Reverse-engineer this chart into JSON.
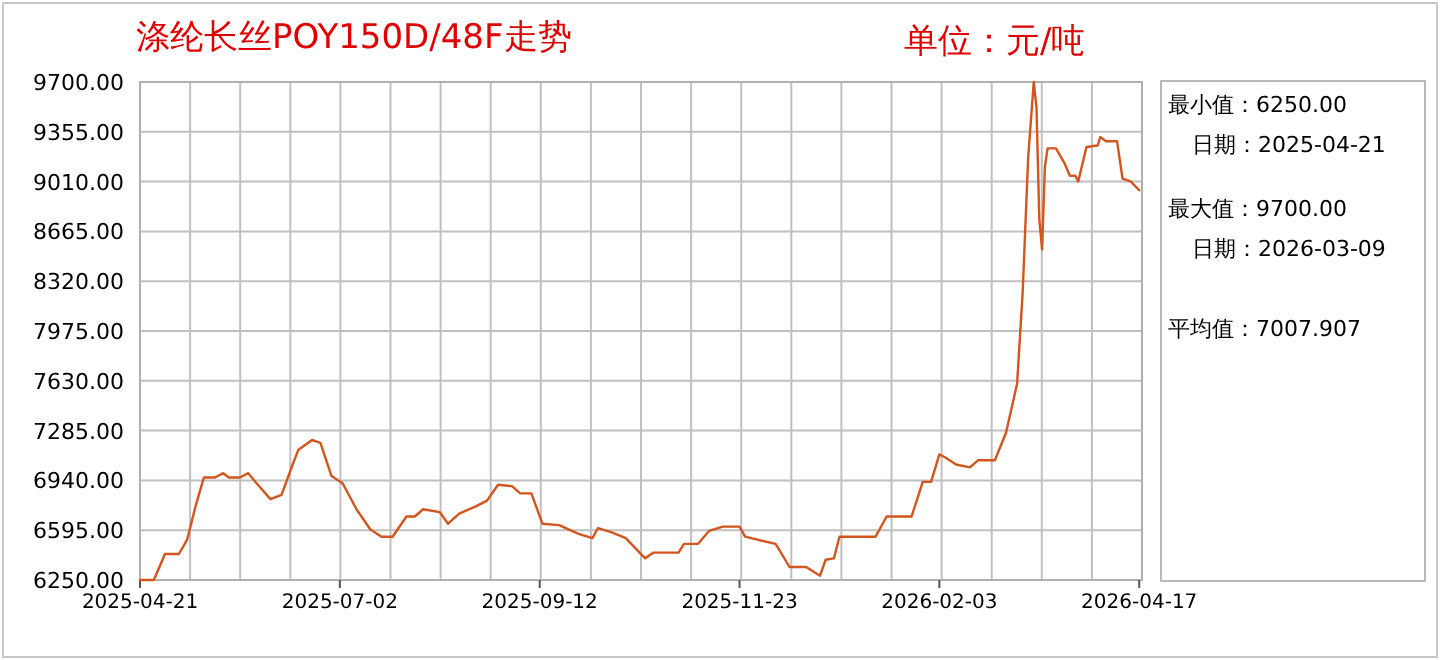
{
  "chart_data": {
    "type": "line",
    "title": "涤纶长丝POY150D/48F走势",
    "subtitle": "单位：元/吨",
    "annotations": [
      "最小值：6250.00",
      "日期：2025-04-21",
      "最大值：9700.00",
      "日期：2026-03-09",
      "平均值：7007.907"
    ],
    "xlim": [
      "2025-04-21",
      "2026-04-17"
    ],
    "xticks": [
      {
        "value": "2025-04-21",
        "label": "2025-04-21"
      },
      {
        "value": "2025-07-02",
        "label": "2025-07-02"
      },
      {
        "value": "2025-09-12",
        "label": "2025-09-12"
      },
      {
        "value": "2025-11-23",
        "label": "2025-11-23"
      },
      {
        "value": "2026-02-03",
        "label": "2026-02-03"
      },
      {
        "value": "2026-04-16",
        "label": "2026-04-17"
      }
    ],
    "ylim": [
      6250,
      9700
    ],
    "yticks": [
      {
        "value": 6250,
        "label": "6250.00"
      },
      {
        "value": 6595,
        "label": "6595.00"
      },
      {
        "value": 6940,
        "label": "6940.00"
      },
      {
        "value": 7285,
        "label": "7285.00"
      },
      {
        "value": 7630,
        "label": "7630.00"
      },
      {
        "value": 7975,
        "label": "7975.00"
      },
      {
        "value": 8320,
        "label": "8320.00"
      },
      {
        "value": 8665,
        "label": "8665.00"
      },
      {
        "value": 9010,
        "label": "9010.00"
      },
      {
        "value": 9355,
        "label": "9355.00"
      },
      {
        "value": 9700,
        "label": "9700.00"
      }
    ],
    "grid": true,
    "marker": "none",
    "line_style": "solid",
    "series": [
      {
        "color": "#d2561e",
        "x": [
          "2025-04-21",
          "2025-04-26",
          "2025-04-30",
          "2025-05-05",
          "2025-05-08",
          "2025-05-11",
          "2025-05-14",
          "2025-05-18",
          "2025-05-21",
          "2025-05-23",
          "2025-05-27",
          "2025-05-30",
          "2025-06-02",
          "2025-06-07",
          "2025-06-11",
          "2025-06-15",
          "2025-06-17",
          "2025-06-22",
          "2025-06-25",
          "2025-06-29",
          "2025-07-03",
          "2025-07-08",
          "2025-07-13",
          "2025-07-17",
          "2025-07-21",
          "2025-07-26",
          "2025-07-29",
          "2025-08-01",
          "2025-08-07",
          "2025-08-10",
          "2025-08-14",
          "2025-08-20",
          "2025-08-24",
          "2025-08-28",
          "2025-09-02",
          "2025-09-05",
          "2025-09-09",
          "2025-09-13",
          "2025-09-19",
          "2025-09-26",
          "2025-10-01",
          "2025-10-03",
          "2025-10-08",
          "2025-10-13",
          "2025-10-20",
          "2025-10-23",
          "2025-11-01",
          "2025-11-03",
          "2025-11-08",
          "2025-11-12",
          "2025-11-17",
          "2025-11-23",
          "2025-11-25",
          "2025-12-06",
          "2025-12-11",
          "2025-12-17",
          "2025-12-22",
          "2025-12-24",
          "2025-12-27",
          "2025-12-29",
          "2026-01-11",
          "2026-01-15",
          "2026-01-24",
          "2026-01-28",
          "2026-01-31",
          "2026-02-03",
          "2026-02-05",
          "2026-02-09",
          "2026-02-14",
          "2026-02-17",
          "2026-02-23",
          "2026-02-27",
          "2026-03-03",
          "2026-03-05",
          "2026-03-07",
          "2026-03-09",
          "2026-03-10",
          "2026-03-11",
          "2026-03-12",
          "2026-03-13",
          "2026-03-14",
          "2026-03-17",
          "2026-03-20",
          "2026-03-22",
          "2026-03-24",
          "2026-03-25",
          "2026-03-28",
          "2026-04-01",
          "2026-04-02",
          "2026-04-04",
          "2026-04-08",
          "2026-04-10",
          "2026-04-13",
          "2026-04-16"
        ],
        "values": [
          6250,
          6250,
          6430,
          6430,
          6530,
          6760,
          6960,
          6960,
          6990,
          6960,
          6960,
          6990,
          6920,
          6810,
          6840,
          7050,
          7150,
          7220,
          7200,
          6970,
          6920,
          6740,
          6600,
          6550,
          6550,
          6690,
          6690,
          6740,
          6720,
          6640,
          6710,
          6760,
          6800,
          6910,
          6900,
          6850,
          6850,
          6640,
          6630,
          6570,
          6540,
          6610,
          6580,
          6540,
          6400,
          6440,
          6440,
          6500,
          6500,
          6590,
          6620,
          6620,
          6550,
          6500,
          6340,
          6340,
          6280,
          6390,
          6400,
          6550,
          6550,
          6690,
          6690,
          6930,
          6930,
          7120,
          7100,
          7050,
          7030,
          7080,
          7080,
          7270,
          7610,
          8240,
          9180,
          9700,
          9520,
          8750,
          8540,
          9110,
          9240,
          9240,
          9140,
          9050,
          9050,
          9010,
          9250,
          9260,
          9320,
          9290,
          9290,
          9030,
          9010,
          8950
        ]
      }
    ]
  }
}
